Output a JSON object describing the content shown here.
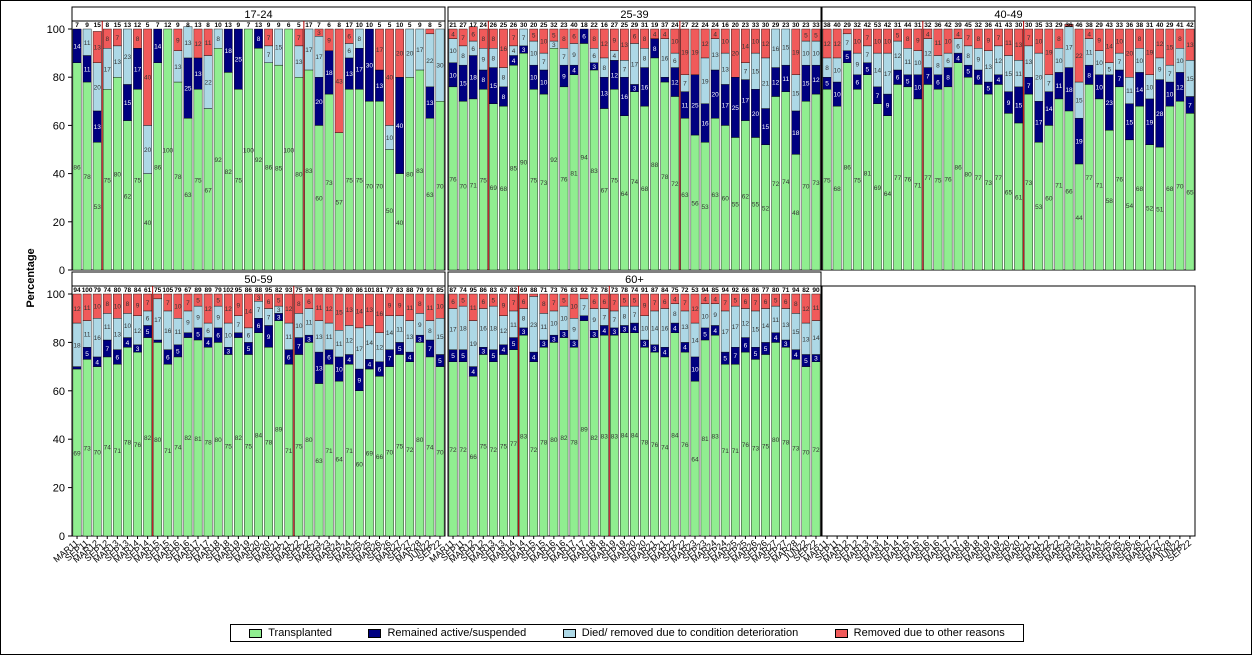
{
  "chart_data": {
    "type": "bar",
    "stacked": true,
    "ylabel": "Percentage",
    "ylim": [
      0,
      100
    ],
    "yticks": [
      0,
      20,
      40,
      60,
      80,
      100
    ],
    "colors": {
      "Transplanted": "#90ee90",
      "Remained active/suspended": "#000080",
      "Died/ removed due to condition deterioration": "#add8e6",
      "Removed due to other reasons": "#f05a5a",
      "refline": "#b00000"
    },
    "categories": [
      "MAR11",
      "SEP11",
      "MAR12",
      "SEP12",
      "MAR13",
      "SEP13",
      "MAR14",
      "SEP14",
      "MAR15",
      "SEP15",
      "MAR16",
      "SEP16",
      "MAR17",
      "SEP17",
      "MAR18",
      "SEP18",
      "MAR19",
      "SEP19",
      "MAR20",
      "SEP20",
      "MAR21",
      "SEP21",
      "MAR22",
      "SEP22",
      "MAR23",
      "SEP23",
      "MAR24",
      "SEP24",
      "MAR25",
      "SEP25",
      "MAR26",
      "SEP26",
      "MAR27",
      "SEP27",
      "MAR28",
      "JUN22",
      "SEP22"
    ],
    "series_names": [
      "Transplanted",
      "Remained active/suspended",
      "Died/ removed due to condition deterioration",
      "Removed due to other reasons"
    ],
    "panels": [
      {
        "title": "17-24",
        "reflines": [
          3,
          23
        ],
        "n": [
          7,
          9,
          15,
          8,
          15,
          13,
          12,
          5,
          7,
          12,
          9,
          8,
          13,
          8,
          10,
          13,
          9,
          7,
          13,
          9,
          9,
          6,
          5,
          17,
          7,
          6,
          8,
          17,
          10,
          10,
          5,
          5,
          10,
          5,
          9,
          8,
          5
        ],
        "transplanted": [
          86,
          78,
          53,
          75,
          80,
          62,
          75,
          40,
          86,
          100,
          78,
          63,
          75,
          67,
          92,
          82,
          75,
          100,
          92,
          86,
          85,
          100,
          80,
          83,
          60,
          73,
          57,
          75,
          75,
          70,
          70,
          50,
          40,
          80,
          83,
          63,
          70
        ],
        "active": [
          14,
          11,
          13,
          0,
          0,
          15,
          17,
          0,
          14,
          0,
          0,
          25,
          13,
          0,
          0,
          18,
          25,
          0,
          8,
          0,
          0,
          0,
          0,
          0,
          20,
          18,
          0,
          13,
          17,
          30,
          13,
          0,
          40,
          0,
          0,
          13,
          0
        ],
        "died": [
          0,
          11,
          20,
          17,
          13,
          23,
          0,
          20,
          0,
          0,
          13,
          13,
          0,
          22,
          8,
          0,
          0,
          0,
          0,
          7,
          15,
          0,
          13,
          17,
          17,
          0,
          0,
          6,
          8,
          0,
          0,
          10,
          0,
          20,
          17,
          22,
          30
        ],
        "other": [
          0,
          0,
          13,
          8,
          7,
          0,
          8,
          40,
          0,
          0,
          9,
          0,
          12,
          11,
          0,
          0,
          0,
          0,
          0,
          7,
          0,
          0,
          7,
          0,
          3,
          9,
          43,
          6,
          0,
          0,
          17,
          40,
          20,
          0,
          0,
          2,
          0
        ]
      },
      {
        "title": "25-39",
        "reflines": [
          4,
          23
        ],
        "n": [
          21,
          27,
          17,
          24,
          26,
          25,
          26,
          30,
          20,
          25,
          32,
          23,
          40,
          18,
          22,
          16,
          27,
          25,
          29,
          31,
          19,
          37,
          24,
          27,
          22,
          24,
          24,
          16,
          20,
          23,
          33,
          30,
          29,
          23,
          30,
          23,
          33
        ],
        "transplanted": [
          76,
          70,
          71,
          75,
          69,
          68,
          85,
          90,
          75,
          73,
          92,
          76,
          81,
          94,
          83,
          67,
          75,
          64,
          74,
          68,
          88,
          78,
          72,
          63,
          56,
          53,
          63,
          60,
          55,
          62,
          55,
          52,
          72,
          74,
          48,
          70,
          73
        ],
        "active": [
          10,
          15,
          18,
          8,
          15,
          8,
          4,
          3,
          10,
          10,
          0,
          9,
          4,
          6,
          3,
          13,
          12,
          16,
          3,
          16,
          8,
          2,
          12,
          11,
          25,
          16,
          20,
          17,
          25,
          17,
          20,
          15,
          12,
          11,
          18,
          15,
          12
        ],
        "died": [
          10,
          8,
          6,
          9,
          8,
          8,
          4,
          7,
          10,
          7,
          3,
          7,
          9,
          0,
          6,
          8,
          4,
          7,
          17,
          8,
          0,
          16,
          6,
          7,
          0,
          19,
          13,
          13,
          0,
          7,
          15,
          21,
          16,
          15,
          15,
          10,
          10
        ],
        "other": [
          4,
          7,
          6,
          8,
          8,
          16,
          7,
          0,
          5,
          10,
          5,
          8,
          6,
          0,
          8,
          12,
          9,
          13,
          6,
          8,
          4,
          4,
          10,
          19,
          19,
          12,
          4,
          10,
          20,
          14,
          10,
          12,
          0,
          0,
          19,
          5,
          5
        ]
      },
      {
        "title": "40-49",
        "reflines": [
          10,
          20
        ],
        "n": [
          38,
          40,
          29,
          32,
          42,
          53,
          42,
          31,
          44,
          31,
          32,
          36,
          42,
          39,
          45,
          32,
          36,
          41,
          43,
          30,
          30,
          35,
          33,
          29,
          36,
          46,
          38,
          29,
          43,
          33,
          36,
          38,
          31,
          40,
          29,
          41,
          42
        ],
        "transplanted": [
          75,
          68,
          86,
          75,
          81,
          69,
          64,
          77,
          76,
          71,
          77,
          75,
          76,
          86,
          80,
          77,
          73,
          77,
          65,
          61,
          73,
          53,
          60,
          71,
          66,
          44,
          77,
          71,
          58,
          76,
          54,
          68,
          52,
          51,
          68,
          70,
          65
        ],
        "active": [
          5,
          10,
          5,
          6,
          5,
          7,
          9,
          6,
          5,
          10,
          7,
          6,
          8,
          4,
          5,
          6,
          5,
          4,
          9,
          15,
          7,
          17,
          14,
          11,
          18,
          19,
          8,
          10,
          23,
          7,
          15,
          14,
          19,
          28,
          10,
          12,
          7
        ],
        "died": [
          8,
          10,
          7,
          9,
          7,
          14,
          17,
          12,
          11,
          10,
          12,
          8,
          6,
          6,
          8,
          9,
          13,
          12,
          15,
          11,
          13,
          20,
          7,
          10,
          17,
          15,
          11,
          10,
          5,
          7,
          11,
          10,
          10,
          9,
          7,
          10,
          15
        ],
        "other": [
          12,
          12,
          2,
          10,
          7,
          10,
          10,
          5,
          8,
          9,
          4,
          11,
          10,
          4,
          7,
          8,
          9,
          7,
          11,
          13,
          7,
          10,
          19,
          8,
          1,
          22,
          4,
          9,
          14,
          10,
          20,
          8,
          19,
          12,
          15,
          8,
          13
        ]
      },
      {
        "title": "50-59",
        "reflines": [
          8,
          22
        ],
        "n": [
          94,
          100,
          79,
          74,
          80,
          78,
          84,
          61,
          75,
          105,
          79,
          67,
          89,
          89,
          79,
          102,
          95,
          86,
          88,
          95,
          82,
          93,
          75,
          94,
          98,
          83,
          79,
          80,
          86,
          101,
          81,
          77,
          83,
          88,
          79,
          91,
          85
        ],
        "transplanted": [
          69,
          73,
          70,
          74,
          71,
          78,
          76,
          82,
          80,
          71,
          74,
          82,
          81,
          78,
          80,
          75,
          82,
          75,
          84,
          78,
          89,
          71,
          75,
          80,
          63,
          71,
          64,
          71,
          60,
          69,
          66,
          70,
          75,
          72,
          80,
          74,
          70
        ],
        "active": [
          1,
          5,
          4,
          7,
          6,
          4,
          3,
          5,
          1,
          6,
          5,
          2,
          5,
          4,
          6,
          3,
          2,
          5,
          6,
          9,
          3,
          6,
          7,
          3,
          13,
          6,
          10,
          4,
          9,
          4,
          6,
          7,
          5,
          4,
          3,
          7,
          5
        ],
        "died": [
          18,
          11,
          16,
          11,
          13,
          10,
          12,
          6,
          17,
          16,
          11,
          9,
          9,
          6,
          9,
          10,
          7,
          6,
          7,
          7,
          3,
          11,
          10,
          11,
          13,
          11,
          11,
          12,
          17,
          14,
          12,
          14,
          11,
          13,
          9,
          8,
          15
        ],
        "other": [
          12,
          11,
          10,
          8,
          10,
          8,
          9,
          7,
          2,
          7,
          10,
          7,
          5,
          12,
          5,
          12,
          9,
          14,
          3,
          6,
          5,
          12,
          8,
          6,
          11,
          12,
          15,
          13,
          14,
          13,
          16,
          9,
          9,
          11,
          8,
          11,
          10
        ]
      },
      {
        "title": "60+",
        "reflines": [
          7,
          16
        ],
        "n": [
          87,
          74,
          95,
          86,
          83,
          67,
          82,
          69,
          88,
          71,
          73,
          76,
          83,
          92,
          72,
          78,
          73,
          78,
          74,
          91,
          87,
          84,
          75,
          72,
          53,
          94,
          85,
          94,
          92,
          66,
          86,
          77,
          80,
          71,
          94,
          82,
          90
        ],
        "transplanted": [
          72,
          72,
          66,
          75,
          72,
          75,
          77,
          83,
          72,
          78,
          80,
          82,
          78,
          89,
          82,
          83,
          83,
          84,
          84,
          78,
          76,
          74,
          84,
          76,
          64,
          81,
          83,
          71,
          71,
          76,
          73,
          75,
          80,
          78,
          73,
          70,
          72
        ],
        "active": [
          5,
          5,
          4,
          3,
          5,
          4,
          5,
          3,
          4,
          3,
          3,
          3,
          3,
          2,
          3,
          4,
          3,
          3,
          4,
          3,
          3,
          4,
          4,
          4,
          10,
          5,
          4,
          5,
          7,
          6,
          5,
          5,
          4,
          3,
          4,
          5,
          3
        ],
        "died": [
          17,
          18,
          19,
          16,
          18,
          12,
          11,
          8,
          23,
          11,
          10,
          10,
          9,
          7,
          9,
          7,
          7,
          8,
          7,
          10,
          14,
          16,
          8,
          13,
          14,
          10,
          9,
          17,
          17,
          12,
          15,
          14,
          11,
          13,
          15,
          13,
          14
        ],
        "other": [
          6,
          5,
          11,
          6,
          5,
          9,
          7,
          6,
          1,
          8,
          7,
          5,
          10,
          2,
          6,
          6,
          7,
          5,
          5,
          9,
          7,
          6,
          4,
          7,
          12,
          4,
          4,
          7,
          5,
          6,
          7,
          6,
          5,
          6,
          8,
          12,
          11
        ]
      }
    ],
    "legend": {
      "transplanted": "Transplanted",
      "active": "Remained active/suspended",
      "died": "Died/ removed due to condition deterioration",
      "other": "Removed due to other reasons"
    }
  }
}
